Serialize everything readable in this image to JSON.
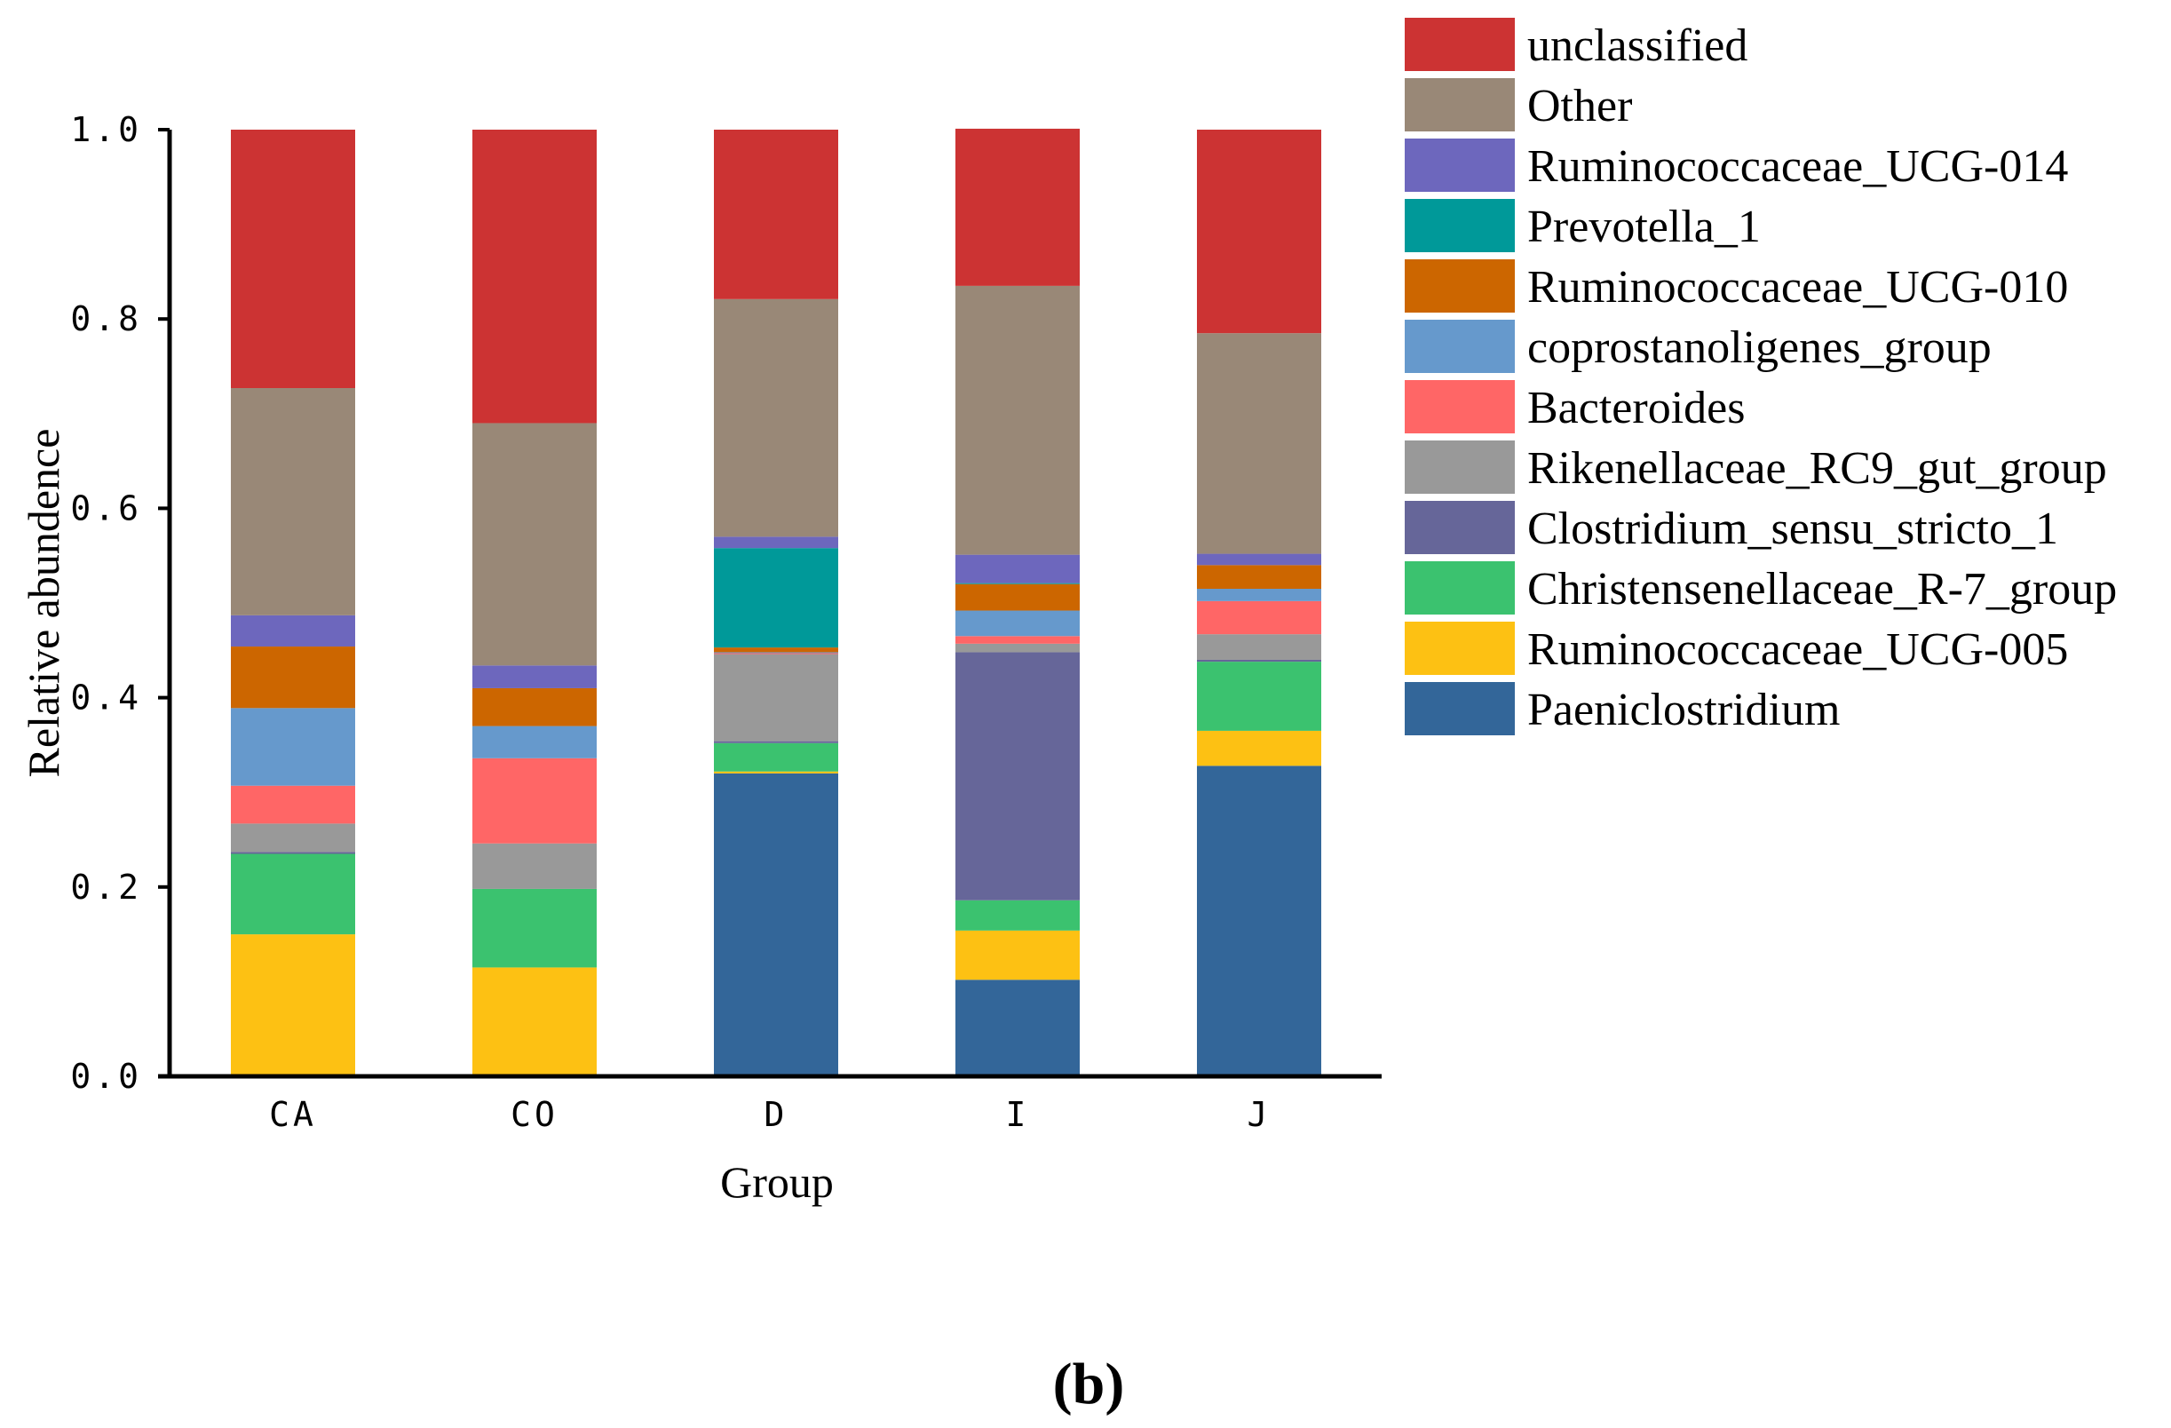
{
  "chart_data": {
    "type": "bar",
    "stacked": true,
    "title": "",
    "xlabel": "Group",
    "ylabel": "Relative abundence",
    "ylim": [
      0,
      1
    ],
    "yticks": [
      "0.0",
      "0.2",
      "0.4",
      "0.6",
      "0.8",
      "1.0"
    ],
    "ytick_values": [
      0,
      0.2,
      0.4,
      0.6,
      0.8,
      1.0
    ],
    "categories": [
      "CA",
      "CO",
      "D",
      "I",
      "J"
    ],
    "legend_position": "top-right",
    "panel_label": "(b)",
    "series": [
      {
        "name": "Paeniclostridium",
        "color": "#336699",
        "values": [
          0.0,
          0.0,
          0.32,
          0.102,
          0.328
        ]
      },
      {
        "name": "Ruminococcaceae_UCG-005",
        "color": "#FDC113",
        "values": [
          0.15,
          0.115,
          0.002,
          0.052,
          0.037
        ]
      },
      {
        "name": "Christensenellaceae_R-7_group",
        "color": "#3BC26F",
        "values": [
          0.085,
          0.083,
          0.03,
          0.032,
          0.073
        ]
      },
      {
        "name": "Clostridium_sensu_stricto_1",
        "color": "#666699",
        "values": [
          0.002,
          0.0,
          0.002,
          0.262,
          0.002
        ]
      },
      {
        "name": "Rikenellaceae_RC9_gut_group",
        "color": "#999999",
        "values": [
          0.03,
          0.048,
          0.092,
          0.009,
          0.027
        ]
      },
      {
        "name": "Bacteroides",
        "color": "#FF6666",
        "values": [
          0.04,
          0.09,
          0.001,
          0.008,
          0.035
        ]
      },
      {
        "name": "coprostanoligenes_group",
        "color": "#6699CC",
        "values": [
          0.082,
          0.034,
          0.001,
          0.027,
          0.013
        ]
      },
      {
        "name": "Ruminococcaceae_UCG-010",
        "color": "#CC6600",
        "values": [
          0.065,
          0.04,
          0.005,
          0.028,
          0.025
        ]
      },
      {
        "name": "Prevotella_1",
        "color": "#009999",
        "values": [
          0.0,
          0.0,
          0.105,
          0.001,
          0.0
        ]
      },
      {
        "name": "Ruminococcaceae_UCG-014",
        "color": "#6D67BD",
        "values": [
          0.033,
          0.024,
          0.012,
          0.03,
          0.012
        ]
      },
      {
        "name": "Other",
        "color": "#998877",
        "values": [
          0.24,
          0.256,
          0.251,
          0.284,
          0.233
        ]
      },
      {
        "name": "unclassified",
        "color": "#CC3333",
        "values": [
          0.273,
          0.31,
          0.179,
          0.166,
          0.215
        ]
      }
    ]
  }
}
